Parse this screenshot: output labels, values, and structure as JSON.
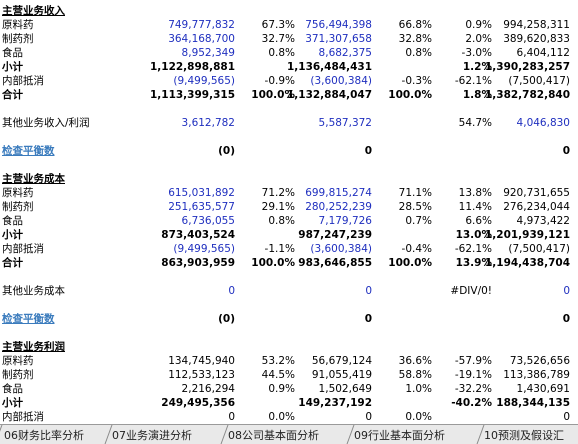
{
  "sheet": {
    "rows": [
      {
        "label": "主营业务收入",
        "cells": [
          null,
          null,
          null,
          null,
          null,
          null
        ]
      },
      {
        "label": "原料药",
        "cells": [
          "749,777,832",
          "67.3%",
          "756,494,398",
          "66.8%",
          "0.9%",
          "994,258,311"
        ]
      },
      {
        "label": "制药剂",
        "cells": [
          "364,168,700",
          "32.7%",
          "371,307,658",
          "32.8%",
          "2.0%",
          "389,620,833"
        ]
      },
      {
        "label": "食品",
        "cells": [
          "8,952,349",
          "0.8%",
          "8,682,375",
          "0.8%",
          "-3.0%",
          "6,404,112"
        ]
      },
      {
        "label": "小计",
        "cells": [
          "1,122,898,881",
          null,
          "1,136,484,431",
          null,
          "1.2%",
          "1,390,283,257"
        ]
      },
      {
        "label": "内部抵消",
        "cells": [
          "(9,499,565)",
          "-0.9%",
          "(3,600,384)",
          "-0.3%",
          "-62.1%",
          "(7,500,417)"
        ]
      },
      {
        "label": "合计",
        "cells": [
          "1,113,399,315",
          "100.0%",
          "1,132,884,047",
          "100.0%",
          "1.8%",
          "1,382,782,840"
        ]
      },
      null,
      {
        "label": "其他业务收入/利润",
        "cells": [
          "3,612,782",
          null,
          "5,587,372",
          null,
          "54.7%",
          "4,046,830"
        ]
      },
      null,
      {
        "label": "检查平衡数",
        "cells": [
          "(0)",
          null,
          "0",
          null,
          null,
          "0"
        ]
      },
      null,
      {
        "label": "主营业务成本",
        "cells": [
          null,
          null,
          null,
          null,
          null,
          null
        ]
      },
      {
        "label": "原料药",
        "cells": [
          "615,031,892",
          "71.2%",
          "699,815,274",
          "71.1%",
          "13.8%",
          "920,731,655"
        ]
      },
      {
        "label": "制药剂",
        "cells": [
          "251,635,577",
          "29.1%",
          "280,252,239",
          "28.5%",
          "11.4%",
          "276,234,044"
        ]
      },
      {
        "label": "食品",
        "cells": [
          "6,736,055",
          "0.8%",
          "7,179,726",
          "0.7%",
          "6.6%",
          "4,973,422"
        ]
      },
      {
        "label": "小计",
        "cells": [
          "873,403,524",
          null,
          "987,247,239",
          null,
          "13.0%",
          "1,201,939,121"
        ]
      },
      {
        "label": "内部抵消",
        "cells": [
          "(9,499,565)",
          "-1.1%",
          "(3,600,384)",
          "-0.4%",
          "-62.1%",
          "(7,500,417)"
        ]
      },
      {
        "label": "合计",
        "cells": [
          "863,903,959",
          "100.0%",
          "983,646,855",
          "100.0%",
          "13.9%",
          "1,194,438,704"
        ]
      },
      null,
      {
        "label": "其他业务成本",
        "cells": [
          "0",
          null,
          "0",
          null,
          "#DIV/0!",
          "0"
        ]
      },
      null,
      {
        "label": "检查平衡数",
        "cells": [
          "(0)",
          null,
          "0",
          null,
          null,
          "0"
        ]
      },
      null,
      {
        "label": "主营业务利润",
        "cells": [
          null,
          null,
          null,
          null,
          null,
          null
        ]
      },
      {
        "label": "原料药",
        "cells": [
          "134,745,940",
          "53.2%",
          "56,679,124",
          "36.6%",
          "-57.9%",
          "73,526,656"
        ]
      },
      {
        "label": "制药剂",
        "cells": [
          "112,533,123",
          "44.5%",
          "91,055,419",
          "58.8%",
          "-19.1%",
          "113,386,789"
        ]
      },
      {
        "label": "食品",
        "cells": [
          "2,216,294",
          "0.9%",
          "1,502,649",
          "1.0%",
          "-32.2%",
          "1,430,691"
        ]
      },
      {
        "label": "小计",
        "cells": [
          "249,495,356",
          null,
          "149,237,192",
          null,
          "-40.2%",
          "188,344,135"
        ]
      },
      {
        "label": "内部抵消",
        "cells": [
          "0",
          "0.0%",
          "0",
          "0.0%",
          null,
          "0"
        ]
      }
    ]
  },
  "tabs": [
    "06财务比率分析",
    "07业务演进分析",
    "08公司基本面分析",
    "09行业基本面分析",
    "10预测及假设汇"
  ]
}
